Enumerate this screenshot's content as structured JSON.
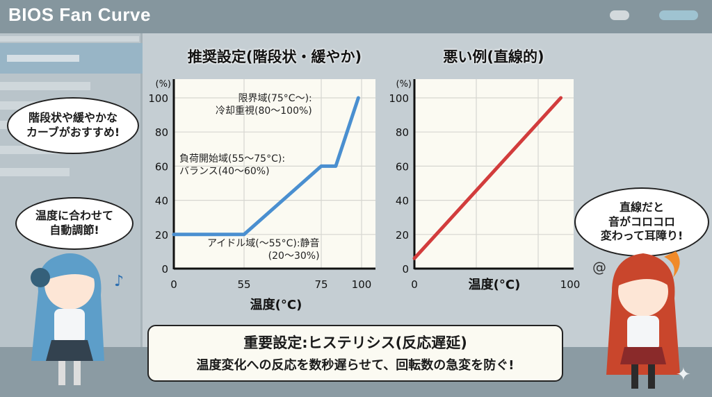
{
  "window": {
    "title": "BIOS Fan Curve",
    "pill_colors": [
      "#d3d9dc",
      "#9fc3d1"
    ]
  },
  "chart_data": [
    {
      "type": "line",
      "title": "推奨設定(階段状・緩やか)",
      "xlabel": "温度(°C)",
      "ylabel": "(%)",
      "x_ticks": [
        0,
        55,
        75,
        100
      ],
      "y_ticks": [
        0,
        20,
        40,
        60,
        80,
        100
      ],
      "xlim": [
        0,
        100
      ],
      "ylim": [
        0,
        100
      ],
      "grid": true,
      "color": "#4a8fd0",
      "series": [
        {
          "x": [
            0,
            55,
            75,
            84,
            98
          ],
          "y": [
            20,
            20,
            60,
            60,
            100
          ]
        }
      ],
      "annotations": [
        "限界域(75°C〜):\n冷却重視(80〜100%)",
        "負荷開始域(55〜75°C):\nバランス(40〜60%)",
        "アイドル域(〜55°C):静音\n(20〜30%)"
      ]
    },
    {
      "type": "line",
      "title": "悪い例(直線的)",
      "xlabel": "温度(°C)",
      "ylabel": "(%)",
      "x_ticks": [
        0,
        100
      ],
      "y_ticks": [
        0,
        20,
        40,
        60,
        80,
        100
      ],
      "xlim": [
        0,
        100
      ],
      "ylim": [
        0,
        100
      ],
      "grid": true,
      "color": "#d23c3c",
      "series": [
        {
          "x": [
            0,
            94
          ],
          "y": [
            6,
            100
          ]
        }
      ]
    }
  ],
  "bubbles": {
    "left_top": "階段状や緩やかな\nカーブがおすすめ!",
    "left_bottom": "温度に合わせて\n自動調節!",
    "right": "直線だと\n音がコロコロ\n変わって耳障り!"
  },
  "note": {
    "line1": "重要設定:ヒステリシス(反応遅延)",
    "line2": "温度変化への反応を数秒遅らせて、回転数の急変を防ぐ!"
  }
}
